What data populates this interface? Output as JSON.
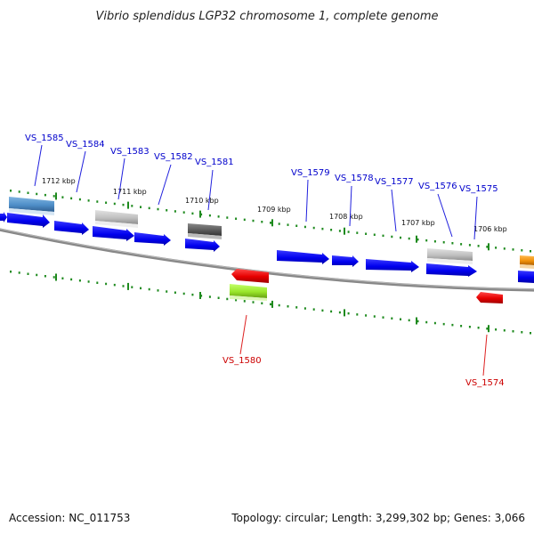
{
  "title": "Vibrio splendidus LGP32 chromosome 1, complete genome",
  "footer": {
    "accession": "Accession: NC_011753",
    "summary": "Topology: circular; Length: 3,299,302 bp; Genes: 3,066"
  },
  "colors": {
    "background": "#ffffff",
    "backbone": "#808080",
    "tick_green": "#1e8a1e",
    "gene_blue": "#0000ee",
    "gene_steelblue": "#4f8ec8",
    "gene_lightgray": "#c0c0c0",
    "gene_darkgray": "#5a5a5a",
    "gene_red": "#e60000",
    "gene_lime": "#9ae62a",
    "gene_orange": "#f0900a",
    "label_forward": "#0000cc",
    "label_reverse": "#cc0000"
  },
  "scale_labels": [
    "1712 kbp",
    "1711 kbp",
    "1710 kbp",
    "1709 kbp",
    "1708 kbp",
    "1707 kbp",
    "1706 kbp"
  ],
  "gene_labels": {
    "forward": [
      "VS_1585",
      "VS_1584",
      "VS_1583",
      "VS_1582",
      "VS_1581",
      "VS_1579",
      "VS_1578",
      "VS_1577",
      "VS_1576",
      "VS_1575"
    ],
    "reverse": [
      "VS_1580",
      "VS_1574"
    ]
  }
}
